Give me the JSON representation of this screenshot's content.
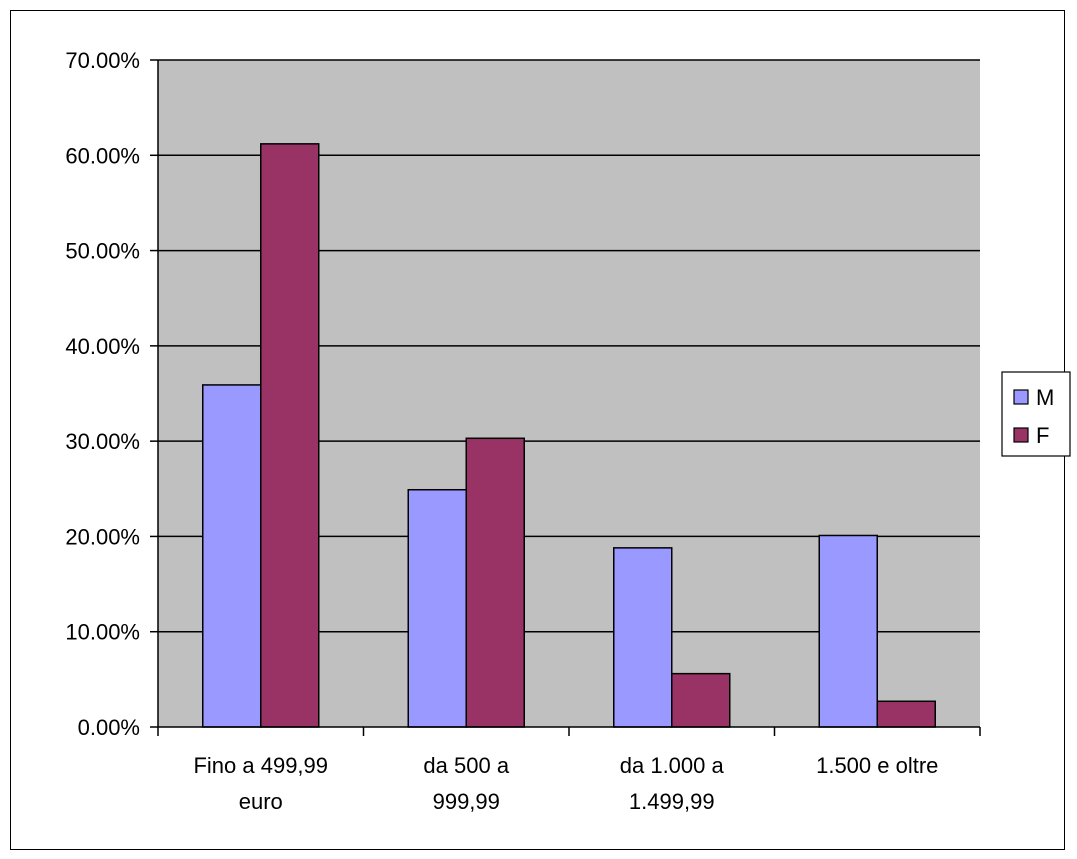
{
  "chart_data": {
    "type": "bar",
    "title": "",
    "xlabel": "",
    "ylabel": "",
    "categories": [
      [
        "Fino a 499,99",
        "euro"
      ],
      [
        "da 500 a",
        "999,99"
      ],
      [
        "da 1.000 a",
        "1.499,99"
      ],
      [
        "1.500 e oltre"
      ]
    ],
    "series": [
      {
        "name": "M",
        "color": "#9999ff",
        "values": [
          0.359,
          0.249,
          0.188,
          0.201
        ]
      },
      {
        "name": "F",
        "color": "#993366",
        "values": [
          0.612,
          0.303,
          0.056,
          0.027
        ]
      }
    ],
    "ylim": [
      0,
      0.7
    ],
    "yticks": [
      0,
      0.1,
      0.2,
      0.3,
      0.4,
      0.5,
      0.6,
      0.7
    ],
    "ytick_labels": [
      "0.00%",
      "10.00%",
      "20.00%",
      "30.00%",
      "40.00%",
      "50.00%",
      "60.00%",
      "70.00%"
    ],
    "grid": true,
    "plot_background": "#c0c0c0",
    "legend_position": "right"
  }
}
